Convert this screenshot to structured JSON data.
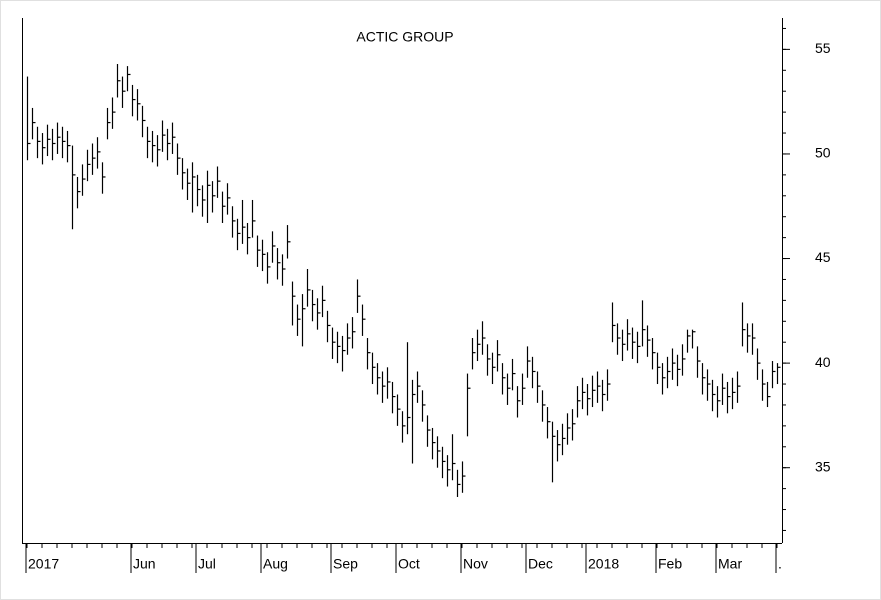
{
  "chart_data": {
    "type": "ohlc",
    "title": "ACTIC GROUP",
    "categories": [
      "2017",
      null,
      null,
      null,
      null,
      null,
      null,
      null,
      null,
      null,
      null,
      null,
      null,
      null,
      null,
      null,
      null,
      null,
      null,
      null,
      null,
      "Jun",
      null,
      null,
      null,
      null,
      null,
      null,
      null,
      null,
      null,
      null,
      null,
      null,
      "Jul",
      null,
      null,
      null,
      null,
      null,
      null,
      null,
      null,
      null,
      null,
      null,
      null,
      "Aug",
      null,
      null,
      null,
      null,
      null,
      null,
      null,
      null,
      null,
      null,
      null,
      null,
      null,
      "Sep",
      null,
      null,
      null,
      null,
      null,
      null,
      null,
      null,
      null,
      null,
      null,
      null,
      "Oct",
      null,
      null,
      null,
      null,
      null,
      null,
      null,
      null,
      null,
      null,
      null,
      null,
      "Nov",
      null,
      null,
      null,
      null,
      null,
      null,
      null,
      null,
      null,
      null,
      null,
      null,
      "Dec",
      null,
      null,
      null,
      null,
      null,
      null,
      null,
      null,
      null,
      null,
      null,
      "2018",
      null,
      null,
      null,
      null,
      null,
      null,
      null,
      null,
      null,
      null,
      null,
      null,
      null,
      "Feb",
      null,
      null,
      null,
      null,
      null,
      null,
      null,
      null,
      null,
      null,
      null,
      "Mar",
      null,
      null,
      null,
      null,
      null,
      null,
      null,
      null,
      null,
      null,
      null,
      "."
    ],
    "high": [
      53.7,
      52.2,
      51.3,
      51.0,
      51.4,
      51.2,
      51.5,
      51.3,
      51.1,
      50.4,
      48.9,
      49.5,
      50.2,
      50.5,
      50.8,
      49.6,
      52.2,
      52.7,
      54.3,
      53.7,
      54.2,
      53.3,
      53.1,
      52.3,
      51.3,
      51.1,
      50.9,
      51.6,
      51.2,
      51.5,
      50.5,
      49.8,
      49.3,
      49.6,
      49.0,
      48.5,
      49.2,
      48.7,
      49.4,
      48.2,
      48.6,
      47.5,
      46.9,
      47.8,
      46.7,
      47.8,
      46.1,
      45.9,
      45.3,
      46.3,
      45.5,
      45.2,
      46.6,
      43.9,
      42.8,
      43.3,
      44.5,
      43.5,
      43.1,
      43.7,
      42.5,
      41.7,
      41.5,
      41.3,
      41.9,
      42.2,
      44.0,
      42.8,
      41.2,
      40.5,
      40.0,
      39.6,
      39.8,
      39.1,
      38.5,
      37.7,
      41.0,
      39.2,
      39.6,
      38.7,
      37.5,
      36.9,
      36.5,
      36.0,
      35.6,
      36.6,
      34.9,
      35.3,
      39.5,
      41.2,
      41.6,
      42.0,
      40.9,
      40.5,
      41.1,
      40.0,
      39.5,
      40.2,
      38.9,
      39.5,
      40.8,
      40.3,
      39.6,
      38.7,
      37.9,
      37.2,
      36.8,
      37.1,
      37.6,
      37.8,
      38.9,
      39.3,
      39.0,
      39.4,
      39.6,
      39.2,
      39.7,
      42.9,
      41.9,
      41.6,
      42.1,
      41.7,
      41.5,
      43.0,
      41.8,
      41.2,
      40.5,
      40.0,
      40.3,
      40.7,
      40.4,
      40.9,
      41.6,
      41.6,
      40.8,
      40.0,
      39.7,
      39.2,
      38.9,
      39.5,
      39.1,
      39.3,
      39.6,
      42.9,
      41.9,
      41.9,
      40.7,
      39.7,
      39.1,
      40.1,
      40.0
    ],
    "low": [
      49.7,
      50.7,
      49.8,
      49.5,
      49.9,
      49.7,
      50.0,
      49.8,
      49.6,
      46.4,
      47.4,
      48.0,
      48.7,
      49.0,
      49.3,
      48.1,
      50.7,
      51.2,
      52.7,
      52.2,
      53.0,
      51.8,
      51.6,
      50.8,
      49.8,
      49.6,
      49.4,
      50.1,
      49.7,
      50.0,
      49.0,
      48.3,
      47.8,
      47.2,
      47.5,
      47.0,
      46.7,
      47.2,
      47.9,
      46.7,
      47.1,
      46.0,
      45.4,
      45.7,
      45.2,
      46.0,
      44.6,
      44.4,
      43.8,
      44.8,
      44.0,
      43.7,
      45.0,
      41.8,
      41.3,
      40.8,
      42.7,
      42.0,
      41.6,
      42.2,
      41.0,
      40.2,
      40.0,
      39.6,
      40.4,
      40.7,
      42.4,
      41.3,
      39.7,
      39.0,
      38.5,
      38.1,
      38.3,
      37.6,
      37.0,
      36.2,
      36.6,
      35.2,
      38.1,
      37.2,
      36.0,
      35.4,
      35.0,
      34.5,
      34.1,
      34.4,
      33.6,
      33.8,
      36.5,
      39.7,
      40.1,
      40.4,
      39.4,
      39.0,
      39.6,
      38.5,
      38.0,
      38.7,
      37.4,
      38.0,
      39.3,
      38.8,
      38.1,
      37.2,
      36.4,
      34.3,
      35.3,
      35.6,
      36.1,
      36.3,
      37.4,
      37.8,
      37.5,
      37.9,
      38.1,
      37.7,
      38.2,
      41.0,
      40.4,
      40.1,
      40.6,
      40.2,
      40.0,
      40.8,
      40.3,
      39.7,
      39.0,
      38.5,
      38.8,
      39.2,
      38.9,
      39.4,
      40.5,
      40.7,
      39.3,
      38.5,
      38.2,
      37.7,
      37.4,
      38.0,
      37.6,
      37.8,
      38.1,
      40.8,
      40.5,
      40.4,
      39.2,
      38.2,
      37.9,
      38.8,
      39.0
    ],
    "close": [
      50.5,
      51.5,
      50.6,
      50.3,
      50.7,
      50.5,
      50.8,
      50.6,
      50.4,
      49.0,
      48.2,
      48.8,
      49.5,
      49.8,
      50.1,
      48.9,
      51.5,
      52.0,
      53.5,
      53.0,
      53.8,
      52.6,
      52.4,
      51.6,
      50.6,
      50.4,
      50.2,
      50.9,
      50.5,
      50.8,
      49.8,
      49.1,
      48.6,
      48.9,
      48.3,
      47.8,
      48.5,
      48.0,
      48.7,
      47.5,
      47.9,
      46.8,
      46.2,
      46.5,
      46.0,
      46.8,
      45.4,
      45.2,
      44.6,
      45.6,
      44.8,
      44.5,
      45.8,
      43.2,
      42.1,
      42.6,
      43.5,
      42.8,
      42.4,
      43.0,
      41.8,
      41.0,
      40.8,
      40.6,
      41.2,
      41.5,
      43.2,
      42.1,
      40.5,
      39.8,
      39.3,
      38.9,
      39.1,
      38.4,
      37.8,
      37.0,
      37.4,
      38.5,
      38.9,
      38.0,
      36.8,
      36.2,
      35.8,
      35.3,
      34.9,
      35.2,
      34.2,
      34.6,
      38.8,
      40.5,
      40.9,
      41.2,
      40.2,
      39.8,
      40.4,
      39.3,
      38.8,
      39.5,
      38.2,
      38.8,
      40.1,
      39.6,
      38.9,
      38.0,
      37.2,
      36.5,
      36.1,
      36.4,
      36.9,
      37.1,
      38.2,
      38.6,
      38.3,
      38.7,
      38.9,
      38.5,
      39.0,
      41.8,
      41.2,
      40.9,
      41.4,
      41.0,
      40.8,
      41.6,
      41.1,
      40.5,
      39.8,
      39.3,
      39.6,
      40.0,
      39.7,
      40.2,
      41.3,
      41.5,
      40.1,
      39.3,
      39.0,
      38.5,
      38.2,
      38.8,
      38.4,
      38.6,
      38.9,
      41.6,
      41.3,
      41.2,
      40.0,
      39.0,
      38.4,
      39.6,
      39.8
    ],
    "color": "#000000",
    "ylim": [
      31.4,
      56.5
    ],
    "yticks": [
      35,
      40,
      45,
      50,
      55
    ],
    "yaxis_side": "right"
  }
}
